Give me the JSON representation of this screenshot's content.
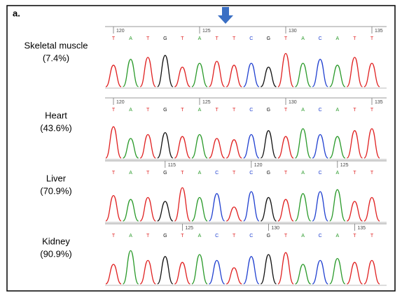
{
  "panel_label": "a.",
  "tracks": [
    {
      "tissue": "Skeletal muscle",
      "percent": "(7.4%)",
      "positions": [
        "120",
        "125",
        "130",
        "135"
      ],
      "bases": [
        "T",
        "A",
        "T",
        "G",
        "T",
        "A",
        "T",
        "T",
        "C",
        "G",
        "T",
        "A",
        "C",
        "A",
        "T",
        "T"
      ]
    },
    {
      "tissue": "Heart",
      "percent": "(43.6%)",
      "positions": [
        "120",
        "125",
        "130",
        "135"
      ],
      "bases": [
        "T",
        "A",
        "T",
        "G",
        "T",
        "A",
        "T",
        "T",
        "C",
        "G",
        "T",
        "A",
        "C",
        "A",
        "T",
        "T"
      ]
    },
    {
      "tissue": "Liver",
      "percent": "(70.9%)",
      "positions": [
        "115",
        "120",
        "125"
      ],
      "bases": [
        "T",
        "A",
        "T",
        "G",
        "T",
        "A",
        "C",
        "T",
        "C",
        "G",
        "T",
        "A",
        "C",
        "A",
        "T",
        "T"
      ]
    },
    {
      "tissue": "Kidney",
      "percent": "(90.9%)",
      "positions": [
        "125",
        "130",
        "135"
      ],
      "bases": [
        "T",
        "A",
        "T",
        "G",
        "T",
        "A",
        "C",
        "T",
        "C",
        "G",
        "T",
        "A",
        "C",
        "A",
        "T",
        "T"
      ]
    }
  ]
}
